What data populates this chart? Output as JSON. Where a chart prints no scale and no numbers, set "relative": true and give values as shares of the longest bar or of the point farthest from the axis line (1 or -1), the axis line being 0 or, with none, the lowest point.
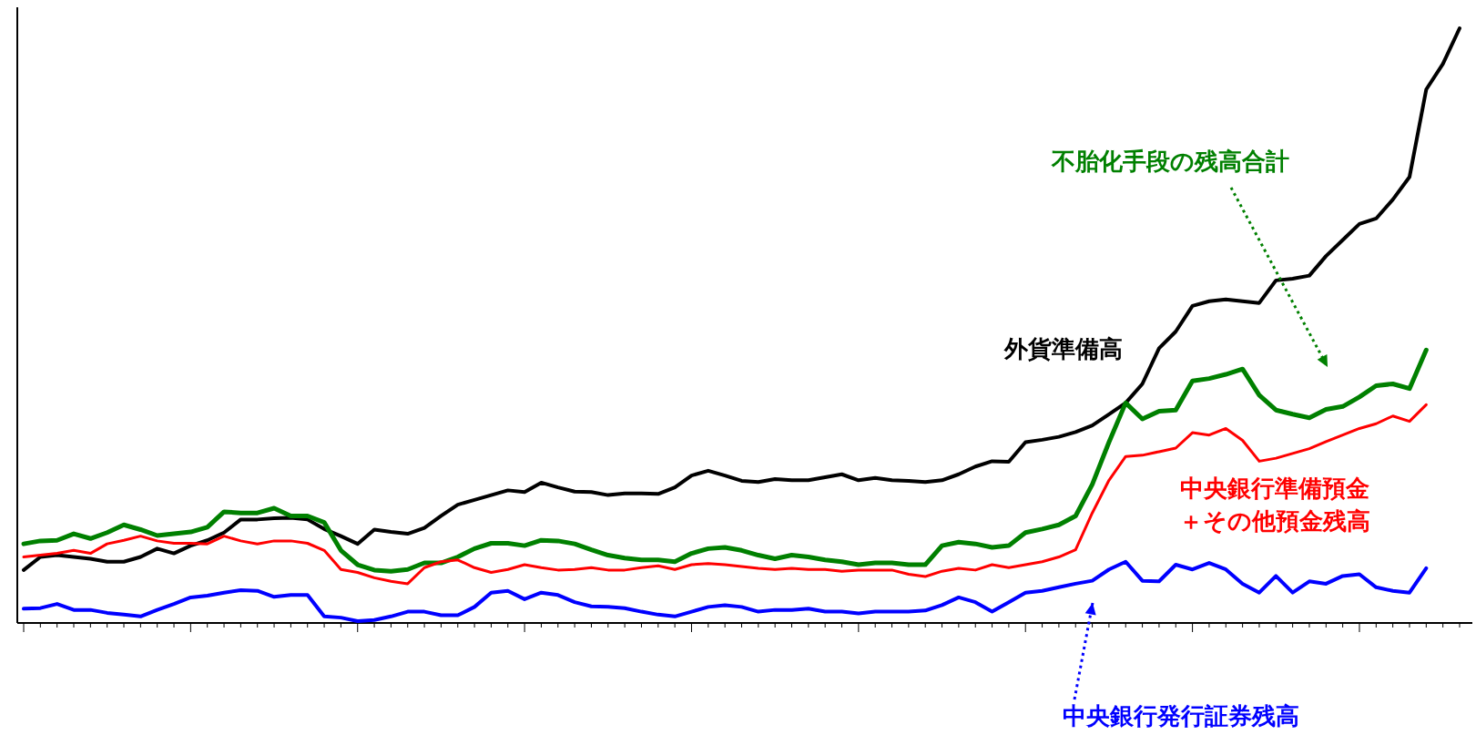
{
  "chart_data": {
    "type": "line",
    "relative": true,
    "categories": [
      null,
      null,
      null,
      null,
      null,
      null,
      null,
      null,
      null,
      null,
      null,
      null,
      null,
      null,
      null,
      null,
      null,
      null,
      null,
      null,
      null,
      null,
      null,
      null,
      null,
      null,
      null,
      null,
      null,
      null,
      null,
      null,
      null,
      null,
      null,
      null,
      null,
      null,
      null,
      null,
      null,
      null,
      null,
      null,
      null,
      null,
      null,
      null,
      null,
      null,
      null,
      null,
      null,
      null,
      null,
      null,
      null,
      null,
      null,
      null,
      null,
      null,
      null,
      null,
      null,
      null,
      null,
      null,
      null,
      null,
      null,
      null,
      null,
      null,
      null,
      null,
      null,
      null,
      null,
      null,
      null,
      null,
      null,
      null,
      null,
      null,
      null
    ],
    "series": [
      {
        "name": "外貨準備高",
        "color": "#000000",
        "values": [
          0.089,
          0.111,
          0.114,
          0.111,
          0.108,
          0.103,
          0.103,
          0.111,
          0.125,
          0.117,
          0.13,
          0.139,
          0.152,
          0.174,
          0.174,
          0.176,
          0.177,
          0.174,
          0.158,
          0.146,
          0.133,
          0.157,
          0.153,
          0.15,
          0.16,
          0.18,
          0.199,
          0.207,
          0.215,
          0.223,
          0.22,
          0.236,
          0.228,
          0.221,
          0.22,
          0.215,
          0.218,
          0.218,
          0.217,
          0.228,
          0.248,
          0.256,
          0.248,
          0.239,
          0.237,
          0.242,
          0.24,
          0.24,
          0.245,
          0.25,
          0.24,
          0.244,
          0.24,
          0.239,
          0.237,
          0.24,
          0.25,
          0.263,
          0.272,
          0.271,
          0.304,
          0.308,
          0.313,
          0.321,
          0.332,
          0.351,
          0.37,
          0.402,
          0.462,
          0.49,
          0.533,
          0.541,
          0.544,
          0.541,
          0.538,
          0.576,
          0.579,
          0.584,
          0.617,
          0.644,
          0.671,
          0.68,
          0.712,
          0.75,
          0.897,
          0.94,
          1.0
        ]
      },
      {
        "name": "不胎化手段の残高合計",
        "color": "#008000",
        "values": [
          0.133,
          0.138,
          0.139,
          0.15,
          0.142,
          0.152,
          0.165,
          0.157,
          0.147,
          0.15,
          0.153,
          0.161,
          0.187,
          0.185,
          0.185,
          0.193,
          0.18,
          0.18,
          0.169,
          0.122,
          0.098,
          0.089,
          0.087,
          0.09,
          0.101,
          0.101,
          0.111,
          0.125,
          0.134,
          0.134,
          0.13,
          0.139,
          0.138,
          0.133,
          0.123,
          0.114,
          0.109,
          0.106,
          0.106,
          0.103,
          0.117,
          0.125,
          0.127,
          0.122,
          0.114,
          0.108,
          0.114,
          0.111,
          0.106,
          0.103,
          0.098,
          0.101,
          0.101,
          0.098,
          0.098,
          0.13,
          0.136,
          0.133,
          0.127,
          0.13,
          0.152,
          0.158,
          0.165,
          0.18,
          0.233,
          0.304,
          0.37,
          0.343,
          0.356,
          0.358,
          0.407,
          0.411,
          0.418,
          0.427,
          0.383,
          0.358,
          0.351,
          0.345,
          0.359,
          0.364,
          0.38,
          0.399,
          0.402,
          0.394,
          0.459,
          null,
          null
        ]
      },
      {
        "name": "中央銀行準備預金＋その他預金残高",
        "color": "#ff0000",
        "values": [
          0.111,
          0.114,
          0.117,
          0.122,
          0.117,
          0.133,
          0.139,
          0.146,
          0.138,
          0.134,
          0.134,
          0.133,
          0.146,
          0.138,
          0.133,
          0.138,
          0.138,
          0.134,
          0.122,
          0.09,
          0.085,
          0.076,
          0.07,
          0.066,
          0.093,
          0.103,
          0.106,
          0.093,
          0.085,
          0.09,
          0.098,
          0.093,
          0.089,
          0.09,
          0.093,
          0.089,
          0.089,
          0.093,
          0.096,
          0.09,
          0.098,
          0.1,
          0.098,
          0.095,
          0.092,
          0.09,
          0.092,
          0.09,
          0.09,
          0.087,
          0.089,
          0.089,
          0.089,
          0.082,
          0.078,
          0.087,
          0.092,
          0.089,
          0.098,
          0.093,
          0.098,
          0.103,
          0.111,
          0.123,
          0.185,
          0.24,
          0.28,
          0.282,
          0.288,
          0.294,
          0.32,
          0.316,
          0.327,
          0.307,
          0.272,
          0.277,
          0.285,
          0.293,
          0.305,
          0.316,
          0.327,
          0.335,
          0.348,
          0.339,
          0.367,
          null,
          null
        ]
      },
      {
        "name": "中央銀行発行証券残高",
        "color": "#0000ff",
        "values": [
          0.024,
          0.025,
          0.032,
          0.022,
          0.022,
          0.017,
          0.014,
          0.011,
          0.022,
          0.032,
          0.043,
          0.046,
          0.051,
          0.055,
          0.054,
          0.044,
          0.047,
          0.047,
          0.011,
          0.009,
          0.003,
          0.005,
          0.011,
          0.019,
          0.019,
          0.013,
          0.013,
          0.027,
          0.051,
          0.054,
          0.04,
          0.051,
          0.047,
          0.035,
          0.028,
          0.027,
          0.025,
          0.019,
          0.014,
          0.011,
          0.019,
          0.027,
          0.03,
          0.027,
          0.019,
          0.022,
          0.022,
          0.024,
          0.019,
          0.019,
          0.016,
          0.019,
          0.019,
          0.019,
          0.021,
          0.03,
          0.043,
          0.035,
          0.019,
          0.035,
          0.051,
          0.054,
          0.06,
          0.066,
          0.071,
          0.09,
          0.103,
          0.071,
          0.07,
          0.098,
          0.09,
          0.101,
          0.09,
          0.066,
          0.051,
          0.079,
          0.051,
          0.07,
          0.066,
          0.079,
          0.082,
          0.06,
          0.054,
          0.051,
          0.092,
          null,
          null
        ]
      }
    ],
    "marker": "none",
    "line_style": "solid",
    "grid": false,
    "legend": false
  }
}
